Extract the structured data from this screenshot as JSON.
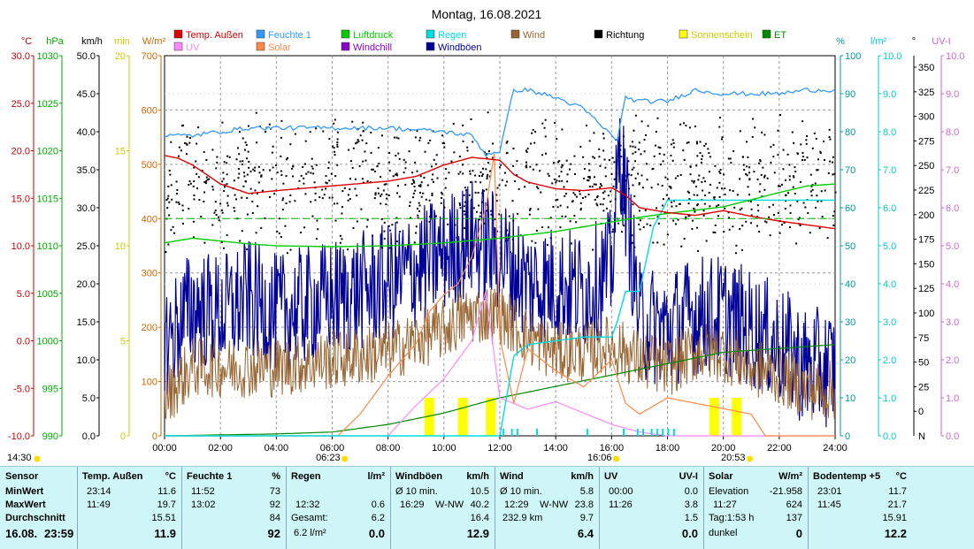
{
  "chart_data": {
    "type": "line",
    "title": "Montag, 16.08.2021",
    "x_ticks": [
      "00:00",
      "02:00",
      "04:00",
      "06:00",
      "08:00",
      "10:00",
      "12:00",
      "14:00",
      "16:00",
      "18:00",
      "20:00",
      "22:00",
      "24:00"
    ],
    "left_axes": [
      {
        "unit": "°C",
        "color": "#cc0000",
        "ticks": [
          "30.0",
          "25.0",
          "20.0",
          "15.0",
          "10.0",
          "5.0",
          "0.0",
          "-5.0",
          "-10.0"
        ]
      },
      {
        "unit": "hPa",
        "color": "#00aa00",
        "ticks": [
          "1030",
          "1025",
          "1020",
          "1015",
          "1010",
          "1005",
          "1000",
          "995",
          "990"
        ]
      },
      {
        "unit": "km/h",
        "color": "#000000",
        "ticks": [
          "50.0",
          "45.0",
          "40.0",
          "35.0",
          "30.0",
          "25.0",
          "20.0",
          "15.0",
          "10.0",
          "5.0",
          "0.0"
        ]
      },
      {
        "unit": "min",
        "color": "#cccc00",
        "ticks": [
          "20",
          "15",
          "10",
          "5",
          "0"
        ]
      },
      {
        "unit": "W/m²",
        "color": "#cc6600",
        "ticks": [
          "700",
          "600",
          "500",
          "400",
          "300",
          "200",
          "100",
          "0"
        ]
      }
    ],
    "right_axes": [
      {
        "unit": "%",
        "color": "#009999",
        "ticks": [
          "100",
          "90",
          "80",
          "70",
          "60",
          "50",
          "40",
          "30",
          "20",
          "10",
          "0"
        ]
      },
      {
        "unit": "l/m²",
        "color": "#00cccc",
        "ticks": [
          "10.0",
          "9.0",
          "8.0",
          "7.0",
          "6.0",
          "5.0",
          "4.0",
          "3.0",
          "2.0",
          "1.0",
          "0.0"
        ]
      },
      {
        "unit": "°",
        "color": "#000000",
        "ticks": [
          "350",
          "325",
          "300",
          "275",
          "250",
          "225",
          "200",
          "175",
          "150",
          "125",
          "100",
          "75",
          "50",
          "25",
          "0"
        ],
        "bottom_label": "N"
      },
      {
        "unit": "UV-I",
        "color": "#cc66cc",
        "ticks": [
          "10.0",
          "9.0",
          "8.0",
          "7.0",
          "6.0",
          "5.0",
          "4.0",
          "3.0",
          "2.0",
          "1.0",
          "0.0"
        ]
      }
    ],
    "legend": [
      {
        "name": "Temp. Außen",
        "color": "#dd0000"
      },
      {
        "name": "Feuchte 1",
        "color": "#3399ff"
      },
      {
        "name": "Luftdruck",
        "color": "#00cc00"
      },
      {
        "name": "Regen",
        "color": "#00dddd"
      },
      {
        "name": "Wind",
        "color": "#996633"
      },
      {
        "name": "Richtung",
        "color": "#000000"
      },
      {
        "name": "Sonnenschein",
        "color": "#ffff00"
      },
      {
        "name": "ET",
        "color": "#008800"
      },
      {
        "name": "UV",
        "color": "#ff88ff"
      },
      {
        "name": "Solar",
        "color": "#ff8844"
      },
      {
        "name": "Windchill",
        "color": "#8800cc"
      },
      {
        "name": "Windböen",
        "color": "#000099"
      }
    ],
    "series": [
      {
        "name": "Temp. Außen",
        "axis": "°C",
        "x": [
          0,
          0.5,
          1,
          2,
          3,
          4,
          6,
          8,
          9,
          10,
          11,
          12,
          12.5,
          13,
          14,
          15,
          16,
          16.5,
          17,
          18,
          19,
          20,
          21,
          22,
          23,
          24
        ],
        "values": [
          19.5,
          19.2,
          18.5,
          16.5,
          15.5,
          15.8,
          16.3,
          16.8,
          17.3,
          18.5,
          19.3,
          19.0,
          17.5,
          16.7,
          16.0,
          15.8,
          16.1,
          15.3,
          14.0,
          13.5,
          13.2,
          13.7,
          13.1,
          12.6,
          12.2,
          11.8
        ]
      },
      {
        "name": "Feuchte 1",
        "axis": "%",
        "x": [
          0,
          1,
          2,
          3,
          4,
          6,
          8,
          10,
          11,
          11.5,
          12,
          12.5,
          13,
          14,
          15,
          16,
          16.2,
          16.5,
          17,
          18,
          19,
          20,
          21,
          22,
          23,
          24
        ],
        "values": [
          79,
          79,
          80,
          81,
          81,
          81,
          81,
          80,
          79,
          74,
          75,
          91,
          91,
          89,
          86,
          79,
          78,
          89,
          88,
          88,
          91,
          90,
          90,
          90,
          91,
          91
        ]
      },
      {
        "name": "Luftdruck",
        "axis": "hPa",
        "x": [
          0,
          1,
          2,
          3,
          4,
          6,
          8,
          10,
          12,
          14,
          16,
          17,
          18,
          20,
          22,
          23,
          24
        ],
        "values": [
          1010.3,
          1010.8,
          1010.5,
          1010.2,
          1010.0,
          1009.9,
          1010.0,
          1010.3,
          1010.8,
          1011.5,
          1012.5,
          1013.0,
          1013.4,
          1014.1,
          1015.6,
          1016.3,
          1016.5
        ]
      },
      {
        "name": "Regen",
        "axis": "l/m²",
        "x": [
          0,
          12,
          12.5,
          13,
          15,
          16,
          16.2,
          16.5,
          17,
          17.5,
          18,
          18.5,
          24
        ],
        "values": [
          0,
          0,
          2.1,
          2.4,
          2.6,
          2.6,
          3.0,
          3.8,
          3.8,
          5.5,
          6.2,
          6.2,
          6.2
        ]
      },
      {
        "name": "Solar",
        "axis": "W/m²",
        "x": [
          0,
          6.2,
          7,
          8,
          9,
          9.5,
          10,
          10.5,
          11,
          11.5,
          11.8,
          12,
          12.5,
          13,
          14,
          15,
          16,
          16.5,
          17,
          18,
          19,
          20,
          21,
          21.5,
          24
        ],
        "values": [
          0,
          0,
          40,
          110,
          170,
          230,
          260,
          280,
          330,
          420,
          520,
          180,
          60,
          160,
          120,
          90,
          140,
          60,
          40,
          70,
          60,
          50,
          40,
          0,
          0
        ]
      },
      {
        "name": "UV",
        "axis": "UV-I",
        "x": [
          0,
          8,
          9,
          10,
          11,
          11.5,
          12,
          13,
          14,
          15,
          16,
          17,
          18,
          24
        ],
        "values": [
          0,
          0,
          0.8,
          1.5,
          2.5,
          3.8,
          1.0,
          0.7,
          0.9,
          0.6,
          0.3,
          0.1,
          0,
          0
        ]
      },
      {
        "name": "ET",
        "axis": "l/m²",
        "x": [
          0,
          4,
          6,
          8,
          10,
          12,
          14,
          16,
          18,
          20,
          22,
          24
        ],
        "values": [
          0,
          0.05,
          0.1,
          0.3,
          0.6,
          1.0,
          1.3,
          1.6,
          1.9,
          2.2,
          2.3,
          2.4
        ]
      },
      {
        "name": "Wind",
        "axis": "km/h",
        "x": [
          0,
          1,
          2,
          3,
          4,
          6,
          8,
          10,
          11,
          12,
          13,
          14,
          15,
          16,
          17,
          18,
          19,
          20,
          21,
          22,
          23,
          24
        ],
        "values": [
          5,
          9,
          9,
          9,
          9,
          10,
          11,
          14,
          16,
          16,
          13,
          11,
          11,
          12,
          10,
          9,
          11,
          11,
          9,
          8,
          6,
          6
        ]
      },
      {
        "name": "Windböen",
        "axis": "km/h",
        "x": [
          0,
          1,
          2,
          3,
          4,
          6,
          8,
          10,
          11,
          12,
          13,
          14,
          15,
          16,
          16.3,
          17,
          18,
          19,
          20,
          21,
          22,
          23,
          24
        ],
        "values": [
          12,
          17,
          16,
          18,
          16,
          18,
          20,
          24,
          26,
          24,
          20,
          20,
          19,
          22,
          38,
          15,
          14,
          16,
          16,
          14,
          12,
          9,
          9
        ]
      },
      {
        "name": "Richtung",
        "axis": "°",
        "type": "scatter",
        "range": [
          150,
          350
        ]
      },
      {
        "name": "Sonnenschein",
        "axis": "min",
        "type": "bar",
        "x": [
          9.3,
          10.5,
          11.5,
          19.5,
          20.3
        ],
        "values": [
          2,
          2,
          2,
          2,
          2
        ]
      }
    ],
    "ylim_primary": [
      0,
      700
    ],
    "grid": true
  },
  "bottom": {
    "left_time": "14:30",
    "sunrise": "06:23",
    "noon": "16:06",
    "sunset": "20:53"
  },
  "panel": {
    "sensor": {
      "title": "Sensor",
      "rows": [
        "MinWert",
        "MaxWert",
        "Durchschnitt"
      ],
      "date": "16.08.",
      "time": "23:59"
    },
    "temp": {
      "title": "Temp. Außen",
      "unit": "°C",
      "min_t": "23:14",
      "min": "11.6",
      "max_t": "11:49",
      "max": "19.7",
      "avg": "15.51",
      "now": "11.9"
    },
    "feuchte": {
      "title": "Feuchte 1",
      "unit": "%",
      "min_t": "11:52",
      "min": "73",
      "max_t": "13:02",
      "max": "92",
      "avg": "84",
      "now": "92"
    },
    "regen": {
      "title": "Regen",
      "unit": "l/m²",
      "r1_l": "12:32",
      "r1": "0.6",
      "r2_l": "Gesamt:",
      "r2": "6.2",
      "now_l": "6.2 l/m²",
      "now": "0.0"
    },
    "windboeen": {
      "title": "Windböen",
      "unit": "km/h",
      "r1_l": "Ø 10 min.",
      "r1": "10.5",
      "r2_t": "16:29",
      "r2_d": "W-NW",
      "r2": "40.2",
      "r3": "16.4",
      "now": "12.9"
    },
    "wind": {
      "title": "Wind",
      "unit": "km/h",
      "r1_l": "Ø 10 min.",
      "r1": "5.8",
      "r2_t": "12:29",
      "r2_d": "W-NW",
      "r2": "23.8",
      "r3_l": "232.9 km",
      "r3": "9.7",
      "now": "6.4"
    },
    "uv": {
      "title": "UV",
      "unit": "UV-I",
      "r1_t": "00:00",
      "r1": "0.0",
      "r2_t": "11:26",
      "r2": "3.8",
      "r3": "1.5",
      "now": "0.0"
    },
    "solar": {
      "title": "Solar",
      "unit": "W/m²",
      "r1_l": "Elevation",
      "r1": "-21.958",
      "r2_t": "11:27",
      "r2": "624",
      "r3_l": "Tag:1:53 h",
      "r3": "137",
      "now_l": "dunkel",
      "now": "0"
    },
    "boden": {
      "title": "Bodentemp +5",
      "unit": "°C",
      "min_t": "23:01",
      "min": "11.7",
      "max_t": "11:45",
      "max": "21.7",
      "avg": "15.91",
      "now": "12.2"
    }
  }
}
